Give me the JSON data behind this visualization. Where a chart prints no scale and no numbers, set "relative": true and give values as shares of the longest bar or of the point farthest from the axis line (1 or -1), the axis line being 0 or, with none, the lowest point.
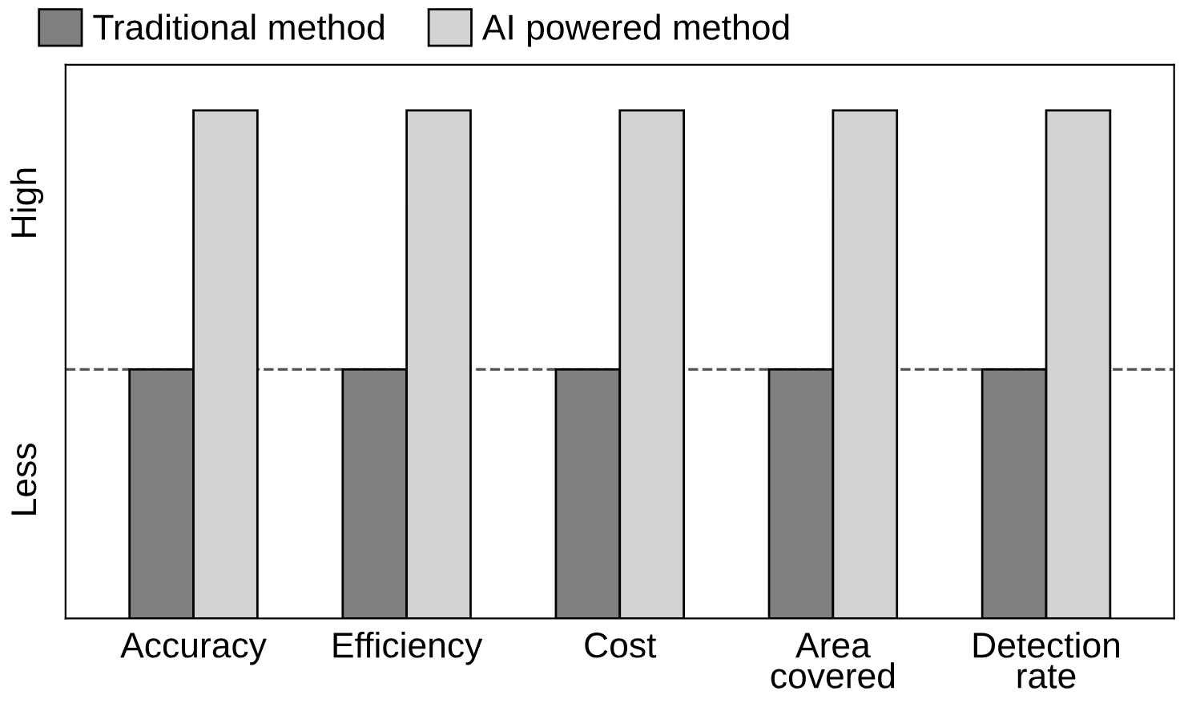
{
  "chart_data": {
    "type": "bar",
    "relative": true,
    "categories": [
      "Accuracy",
      "Efficiency",
      "Cost",
      "Area\ncovered",
      "Detection\nrate"
    ],
    "series": [
      {
        "name": "Traditional method",
        "color": "#808080",
        "values": [
          0.49,
          0.49,
          0.49,
          0.49,
          0.49
        ]
      },
      {
        "name": "AI powered method",
        "color": "#d3d3d3",
        "values": [
          1,
          1,
          1,
          1,
          1
        ]
      }
    ],
    "ref_lines": [
      {
        "axis": "y",
        "value": 0.49,
        "label": null,
        "color": "#555555",
        "line_style": "dashed"
      }
    ],
    "annotations": [
      "High",
      "Less"
    ],
    "legend": "top",
    "grid": false
  }
}
